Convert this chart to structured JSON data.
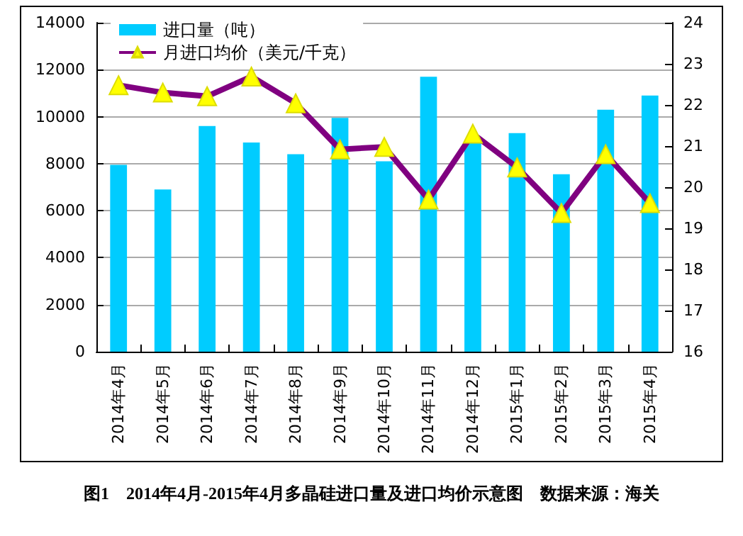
{
  "chart_data": {
    "type": "bar",
    "annotations": [
      "图1　2014年4月-2015年4月多晶硅进口量及进口均价示意图　数据来源：海关"
    ],
    "categories": [
      "2014年4月",
      "2014年5月",
      "2014年6月",
      "2014年7月",
      "2014年8月",
      "2014年9月",
      "2014年10月",
      "2014年11月",
      "2014年12月",
      "2015年1月",
      "2015年2月",
      "2015年3月",
      "2015年4月"
    ],
    "series": [
      {
        "name": "进口量（吨）",
        "color": "#00ccff",
        "values": [
          7950,
          6900,
          9600,
          8900,
          8400,
          9950,
          8100,
          11700,
          8950,
          9300,
          7550,
          10300,
          10900
        ]
      },
      {
        "name": "月进口均价（美元/千克）",
        "type": "line",
        "axis": "y2",
        "color": "#800080",
        "marker": "triangle",
        "values": [
          22.48,
          22.3,
          22.21,
          22.69,
          22.04,
          20.92,
          20.98,
          19.7,
          21.3,
          20.48,
          19.37,
          20.8,
          19.61
        ]
      }
    ],
    "ylim": [
      0,
      14000
    ],
    "yticks": [
      0,
      2000,
      4000,
      6000,
      8000,
      10000,
      12000,
      14000
    ],
    "y2lim": [
      16,
      24
    ],
    "y2ticks": [
      16,
      17,
      18,
      19,
      20,
      21,
      22,
      23,
      24
    ],
    "grid": "y",
    "legend": "top left"
  }
}
